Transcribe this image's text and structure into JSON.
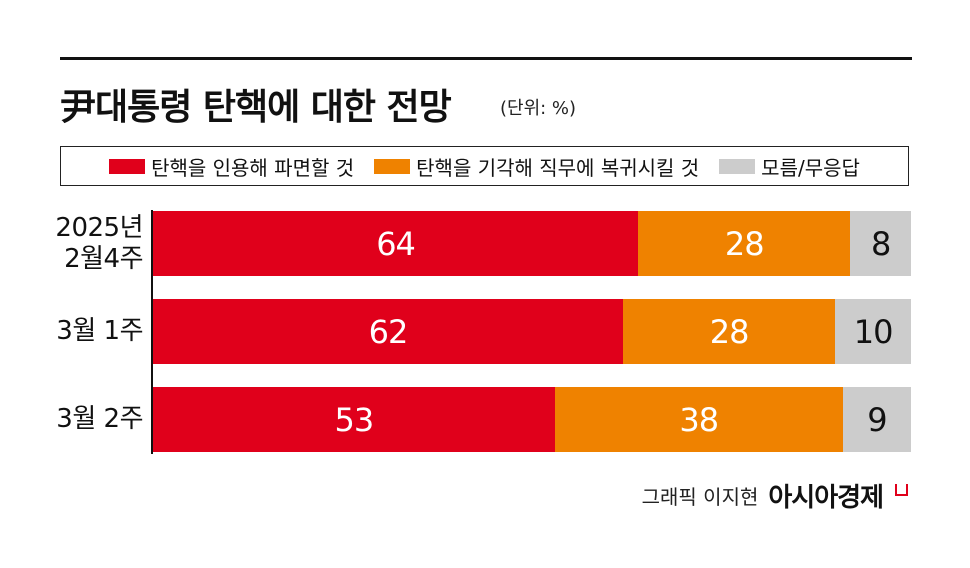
{
  "title": "尹대통령 탄핵에 대한 전망",
  "unit": "(단위: %)",
  "credit": "그래픽 이지현",
  "brand": "아시아경제",
  "colors": {
    "uphold": "#e0001b",
    "reinstate": "#ef8200",
    "unknown": "#cccccc"
  },
  "chart_data": {
    "type": "bar",
    "orientation": "horizontal-stacked",
    "categories": [
      "2025년 2월4주",
      "3월 1주",
      "3월 2주"
    ],
    "category_lines": [
      [
        "2025년",
        "2월4주"
      ],
      [
        "3월 1주"
      ],
      [
        "3월 2주"
      ]
    ],
    "series": [
      {
        "name": "탄핵을 인용해 파면할 것",
        "values": [
          64,
          62,
          53
        ],
        "color": "#e0001b",
        "text_color": "#ffffff"
      },
      {
        "name": "탄핵을 기각해 직무에 복귀시킬 것",
        "values": [
          28,
          28,
          38
        ],
        "color": "#ef8200",
        "text_color": "#ffffff"
      },
      {
        "name": "모름/무응답",
        "values": [
          8,
          10,
          9
        ],
        "color": "#cccccc",
        "text_color": "#111111"
      }
    ],
    "xlim": [
      0,
      100
    ],
    "legend_position": "top"
  }
}
